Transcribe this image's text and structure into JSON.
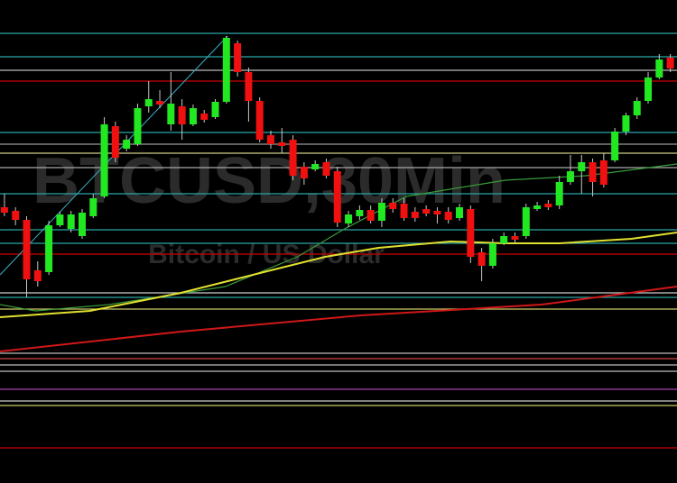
{
  "chart_data": {
    "type": "candlestick",
    "title": "BTCUSD,30Min",
    "subtitle": "Bitcoin / US Dollar",
    "xlim": [
      -0.4,
      60.6
    ],
    "ylim": [
      0,
      536
    ],
    "up_color": "#22e822",
    "down_color": "#f01010",
    "wick_color": "#c8c8c8",
    "x": [
      0,
      1,
      2,
      3,
      4,
      5,
      6,
      7,
      8,
      9,
      10,
      11,
      12,
      13,
      14,
      15,
      16,
      17,
      18,
      19,
      20,
      21,
      22,
      23,
      24,
      25,
      26,
      27,
      28,
      29,
      30,
      31,
      32,
      33,
      34,
      35,
      36,
      37,
      38,
      39,
      40,
      41,
      42,
      43,
      44,
      45,
      46,
      47,
      48,
      49,
      50,
      51,
      52,
      53,
      54,
      55,
      56,
      57,
      58,
      59,
      60
    ],
    "open": [
      306,
      302,
      292,
      236,
      234,
      286,
      282,
      274,
      296,
      318,
      396,
      371,
      376,
      418,
      424,
      398,
      418,
      398,
      410,
      406,
      423,
      488,
      456,
      424,
      386,
      378,
      381,
      351,
      348,
      356,
      346,
      288,
      296,
      303,
      291,
      311,
      310,
      301,
      304,
      302,
      301,
      294,
      304,
      256,
      241,
      266,
      274,
      274,
      304,
      310,
      308,
      334,
      346,
      356,
      358,
      358,
      390,
      408,
      424,
      450,
      472
    ],
    "high": [
      321,
      306,
      296,
      246,
      291,
      301,
      302,
      304,
      321,
      406,
      401,
      386,
      421,
      446,
      436,
      456,
      426,
      420,
      414,
      426,
      496,
      491,
      461,
      428,
      391,
      394,
      386,
      356,
      358,
      360,
      351,
      302,
      308,
      308,
      316,
      316,
      316,
      306,
      308,
      306,
      306,
      310,
      308,
      261,
      271,
      278,
      278,
      310,
      312,
      314,
      341,
      364,
      364,
      360,
      366,
      394,
      411,
      428,
      456,
      476,
      476
    ],
    "low": [
      296,
      286,
      206,
      218,
      231,
      284,
      278,
      271,
      294,
      316,
      356,
      368,
      374,
      411,
      416,
      391,
      381,
      396,
      400,
      404,
      421,
      451,
      401,
      378,
      371,
      366,
      336,
      331,
      346,
      338,
      284,
      284,
      292,
      288,
      284,
      300,
      291,
      290,
      296,
      288,
      288,
      291,
      244,
      224,
      238,
      264,
      266,
      271,
      302,
      303,
      304,
      331,
      321,
      318,
      328,
      356,
      386,
      404,
      421,
      448,
      456
    ],
    "close": [
      300,
      292,
      226,
      224,
      286,
      298,
      298,
      300,
      316,
      398,
      361,
      381,
      416,
      426,
      420,
      421,
      398,
      416,
      403,
      423,
      494,
      456,
      424,
      381,
      376,
      374,
      341,
      338,
      354,
      341,
      289,
      298,
      303,
      291,
      311,
      304,
      294,
      294,
      299,
      298,
      292,
      306,
      251,
      241,
      266,
      274,
      270,
      306,
      308,
      306,
      334,
      346,
      356,
      334,
      331,
      390,
      408,
      424,
      450,
      470,
      460
    ],
    "levels": [
      {
        "value": 499,
        "color": "#2aa7a7"
      },
      {
        "value": 473,
        "color": "#2aa7a7"
      },
      {
        "value": 458,
        "color": "#bbbbbb"
      },
      {
        "value": 446,
        "color": "#cc0000"
      },
      {
        "value": 389,
        "color": "#2aa7a7"
      },
      {
        "value": 376,
        "color": "#999999"
      },
      {
        "value": 366,
        "color": "#cccc88"
      },
      {
        "value": 350,
        "color": "#aaaaaa"
      },
      {
        "value": 321,
        "color": "#2aa7a7"
      },
      {
        "value": 281,
        "color": "#2aa7a7"
      },
      {
        "value": 266,
        "color": "#2aa7a7"
      },
      {
        "value": 254,
        "color": "#cc0000"
      },
      {
        "value": 211,
        "color": "#cccccc"
      },
      {
        "value": 206,
        "color": "#2aa7a7"
      },
      {
        "value": 193,
        "color": "#cccc66"
      },
      {
        "value": 144,
        "color": "#bbbbbb"
      },
      {
        "value": 138,
        "color": "#cc4444"
      },
      {
        "value": 131,
        "color": "#bbbbbb"
      },
      {
        "value": 124,
        "color": "#bbbbbb"
      },
      {
        "value": 104,
        "color": "#aa44aa"
      },
      {
        "value": 91,
        "color": "#cccccc"
      },
      {
        "value": 86,
        "color": "#cccc66"
      },
      {
        "value": 39,
        "color": "#cc0000"
      }
    ],
    "lines": [
      {
        "color": "#3a9a3a",
        "width": 1.2,
        "x": [
          -0.4,
          2.8,
          9.4,
          19.9,
          26.4,
          30.5,
          36.2,
          45.1,
          52.4,
          60.6
        ],
        "values": [
          198,
          191,
          198,
          218,
          251,
          281,
          318,
          336,
          341,
          354
        ]
      },
      {
        "color": "#e0e030",
        "width": 2,
        "x": [
          -0.4,
          7.7,
          15.9,
          24.0,
          28.9,
          33.7,
          40.2,
          45.1,
          50.0,
          56.5,
          60.6
        ],
        "values": [
          184,
          191,
          211,
          236,
          251,
          261,
          268,
          266,
          266,
          271,
          278
        ]
      },
      {
        "color": "#d01818",
        "width": 2,
        "x": [
          -0.4,
          15.9,
          32.1,
          48.4,
          60.6
        ],
        "values": [
          146,
          168,
          186,
          198,
          218
        ]
      },
      {
        "color": "#3ab0c8",
        "width": 1,
        "x": [
          -0.4,
          20.1
        ],
        "values": [
          231,
          496
        ]
      }
    ]
  }
}
